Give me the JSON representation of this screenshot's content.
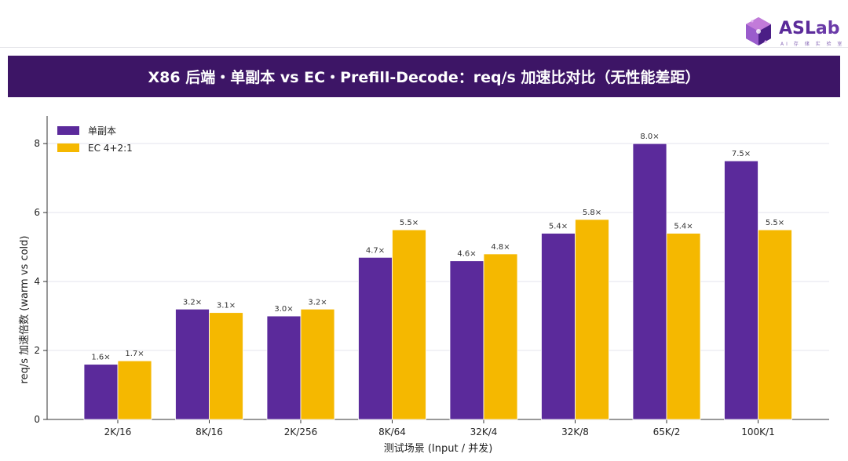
{
  "logo": {
    "text_a": "ASL",
    "text_b": "ab",
    "subtitle": "AI 存 储 实 验 室"
  },
  "header": {
    "title": "X86 后端・单副本 vs EC・Prefill-Decode：req/s 加速比对比（无性能差距）"
  },
  "colors": {
    "title_bar": "#3d1566",
    "series_single": "#5b2a9b",
    "series_ec": "#f5b800",
    "grid": "#e4e4ee",
    "axis": "#333333"
  },
  "chart_data": {
    "type": "bar",
    "categories": [
      "2K/16",
      "8K/16",
      "2K/256",
      "8K/64",
      "32K/4",
      "32K/8",
      "65K/2",
      "100K/1"
    ],
    "series": [
      {
        "name": "单副本",
        "values": [
          1.6,
          3.2,
          3.0,
          4.7,
          4.6,
          5.4,
          8.0,
          7.5
        ]
      },
      {
        "name": "EC 4+2:1",
        "values": [
          1.7,
          3.1,
          3.2,
          5.5,
          4.8,
          5.8,
          5.4,
          5.5
        ]
      }
    ],
    "value_suffix": "×",
    "xlabel": "测试场景 (Input / 并发)",
    "ylabel": "req/s 加速倍数 (warm vs cold)",
    "ylim": [
      0,
      8.8
    ],
    "yticks": [
      0,
      2,
      4,
      6,
      8
    ],
    "grid": true,
    "legend_position": "top-left"
  }
}
